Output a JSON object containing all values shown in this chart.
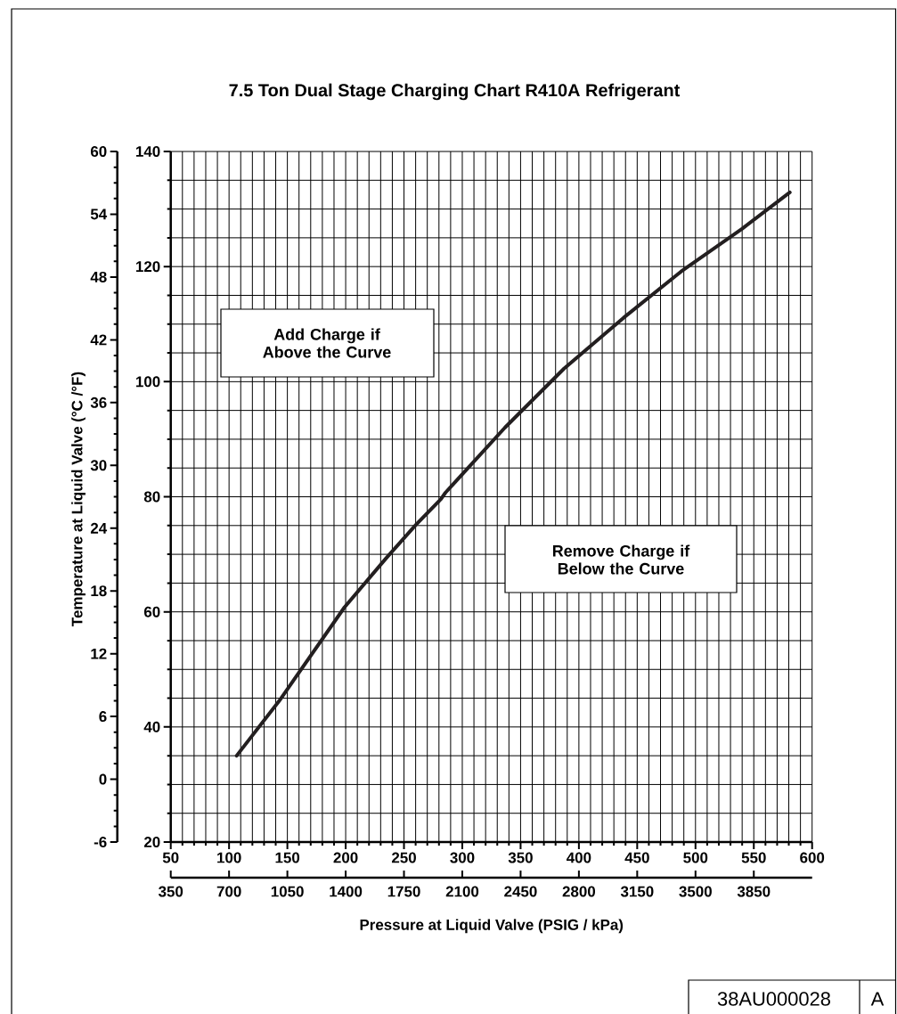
{
  "chart_data": {
    "type": "line",
    "title": "7.5 Ton Dual Stage Charging Chart R410A Refrigerant",
    "xlabel": "Pressure at Liquid Valve  (PSIG / kPa)",
    "y2label": "Temperature at Liquid Valve (°C /°F)",
    "x": [
      106.5,
      142.9,
      199,
      234.6,
      260.1,
      281.7,
      285.5,
      336.5,
      387.4,
      438.3,
      489.3,
      540.1,
      580.9
    ],
    "values": [
      35.0,
      44.5,
      60.8,
      69.3,
      75.1,
      79.6,
      80.7,
      92.0,
      102.3,
      111.1,
      119.4,
      126.6,
      132.9
    ],
    "color": "#231f20",
    "xlim": [
      50,
      600
    ],
    "xticks": [
      50,
      100,
      150,
      200,
      250,
      300,
      350,
      400,
      450,
      500,
      550,
      600
    ],
    "ylim": [
      20,
      140
    ],
    "yticks": [
      20,
      40,
      60,
      80,
      100,
      120,
      140
    ],
    "y2lim": [
      -6,
      60
    ],
    "y2ticks": [
      -6,
      0,
      6,
      12,
      18,
      24,
      30,
      36,
      42,
      48,
      54,
      60
    ],
    "x2lim": [
      350,
      4200
    ],
    "x2ticks": [
      350,
      700,
      1050,
      1400,
      1750,
      2100,
      2450,
      2800,
      3150,
      3500,
      3850
    ],
    "grid": true,
    "annotations": [
      "Add Charge if Above the Curve",
      "Remove Charge if Below the Curve",
      "38AU000028",
      "A"
    ]
  }
}
